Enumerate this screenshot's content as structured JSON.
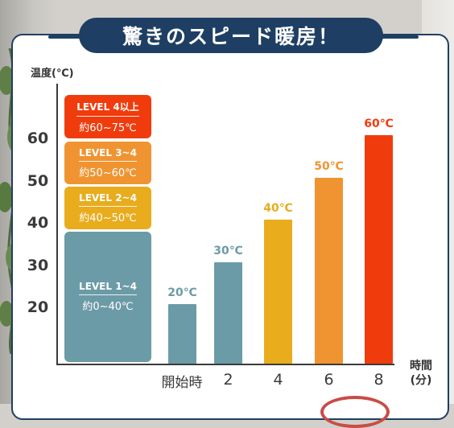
{
  "title": "驚きのスピード暖房！",
  "chart_data": {
    "type": "bar",
    "ylabel": "温度(℃)",
    "xlabel": "時間",
    "xlabel_sub": "(分)",
    "yticks": [
      "20",
      "30",
      "40",
      "50",
      "60"
    ],
    "ylim": [
      0,
      70
    ],
    "categories": [
      "開始時",
      "2",
      "4",
      "6",
      "8"
    ],
    "values": [
      20,
      30,
      40,
      50,
      60
    ],
    "value_labels": [
      "20℃",
      "30℃",
      "40℃",
      "50℃",
      "60℃"
    ],
    "bar_colors": [
      "#6b9ba6",
      "#6b9ba6",
      "#e8ac1d",
      "#f09431",
      "#f03c0d"
    ],
    "levels": [
      {
        "name": "LEVEL 4以上",
        "range": "約60~75℃",
        "from": 60,
        "to": 75,
        "color": "#f03c0d"
      },
      {
        "name": "LEVEL 3~4",
        "range": "約50~60℃",
        "from": 50,
        "to": 60,
        "color": "#f09431"
      },
      {
        "name": "LEVEL 2~4",
        "range": "約40~50℃",
        "from": 40,
        "to": 50,
        "color": "#e8ac1d"
      },
      {
        "name": "LEVEL 1~4",
        "range": "約0~40℃",
        "from": 0,
        "to": 40,
        "color": "#6b9ba6"
      }
    ]
  }
}
